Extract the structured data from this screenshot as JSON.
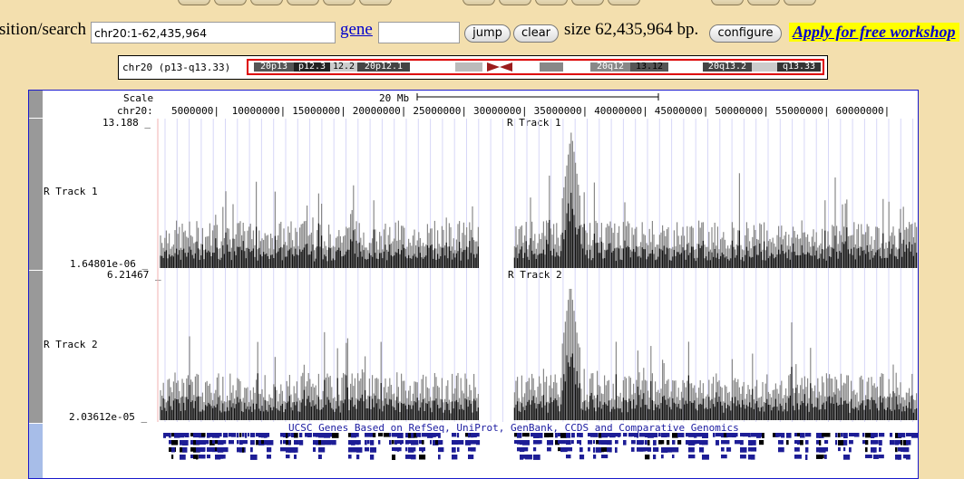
{
  "nav": {
    "position_label": "sition/search",
    "position_value": "chr20:1-62,435,964",
    "gene_link": "gene",
    "gene_value": "",
    "jump_button": "jump",
    "clear_button": "clear",
    "size_text": "size 62,435,964 bp.",
    "configure_button": "configure",
    "workshop_link": "Apply for free workshop"
  },
  "ideogram": {
    "label": "chr20 (p13-q13.33)",
    "bands": [
      "20p13",
      "p12.3",
      "12.2",
      "20p12.1",
      "20q12",
      "13.12",
      "20q13.2",
      "q13.33"
    ]
  },
  "ruler": {
    "scale_label": "Scale",
    "scale_value": "20 Mb",
    "chrom_label": "chr20:",
    "ticks": [
      "5000000",
      "10000000",
      "15000000",
      "20000000",
      "25000000",
      "30000000",
      "35000000",
      "40000000",
      "45000000",
      "50000000",
      "55000000",
      "60000000"
    ]
  },
  "tracks": [
    {
      "title": "R Track 1",
      "side_label": "R Track 1",
      "max": "13.188 _",
      "min": "1.64801e-06 _"
    },
    {
      "title": "R Track 2",
      "side_label": "R Track 2",
      "max": "6.21467 _",
      "min": "2.03612e-05 _"
    }
  ],
  "genes_track": {
    "title": "UCSC Genes Based on RefSeq, UniProt, GenBank, CCDS and Comparative Genomics"
  },
  "colors": {
    "background": "#f3dfae",
    "link": "#0000cc",
    "highlight": "#ffff00",
    "gene": "#0a0a8c"
  }
}
